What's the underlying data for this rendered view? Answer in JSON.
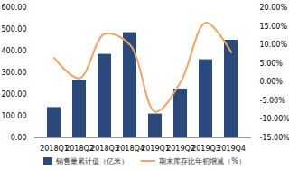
{
  "chart_data": {
    "type": "bar",
    "categories": [
      "2018Q1",
      "2018Q2",
      "2018Q3",
      "2018Q4",
      "2019Q1",
      "2019Q2",
      "2019Q3",
      "2019Q4"
    ],
    "series": [
      {
        "name": "销售量累计值（亿米）",
        "type": "bar",
        "color": "#2b4a7c",
        "values": [
          140,
          265,
          385,
          485,
          110,
          225,
          360,
          450
        ]
      },
      {
        "name": "期末库存比年初增减（%）",
        "type": "line",
        "color": "#f4a460",
        "axis": "y2",
        "values": [
          6.5,
          1,
          13,
          10,
          -8,
          0,
          16,
          8
        ]
      }
    ],
    "ylim": [
      0,
      600
    ],
    "yticks": [
      {
        "value": 0,
        "label": "0.00"
      },
      {
        "value": 100,
        "label": "100.00"
      },
      {
        "value": 200,
        "label": "200.00"
      },
      {
        "value": 300,
        "label": "300.00"
      },
      {
        "value": 400,
        "label": "400.00"
      },
      {
        "value": 500,
        "label": "500.00"
      },
      {
        "value": 600,
        "label": "600.00"
      }
    ],
    "y2lim": [
      -15,
      20
    ],
    "y2ticks": [
      {
        "value": -15,
        "label": "-15.00%"
      },
      {
        "value": -10,
        "label": "-10.00%"
      },
      {
        "value": -5,
        "label": "-5.00%"
      },
      {
        "value": 0,
        "label": "0.00%"
      },
      {
        "value": 5,
        "label": "5.00%"
      },
      {
        "value": 10,
        "label": "10.00%"
      },
      {
        "value": 15,
        "label": "15.00%"
      },
      {
        "value": 20,
        "label": "20.00%"
      }
    ],
    "legend": "bottom",
    "grid": false
  }
}
